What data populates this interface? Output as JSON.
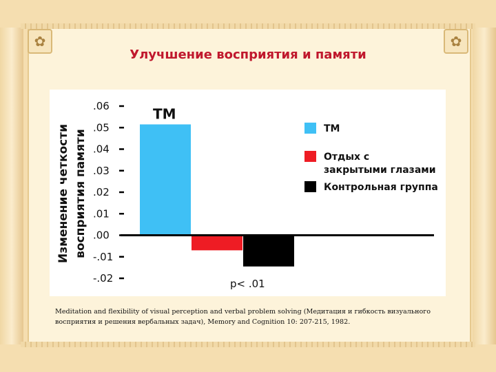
{
  "slide": {
    "title": "Улучшение восприятия и памяти",
    "citation": "Meditation and flexibility of visual perception and verbal problem solving (Медитация и гибкость визуального восприятия и решения вербальных задач), Memory and Cognition 10: 207-215, 1982."
  },
  "colors": {
    "title": "#c0182d",
    "tm": "#3fc0f5",
    "rest": "#ee1c24",
    "control": "#000000"
  },
  "chart_data": {
    "type": "bar",
    "ylabel": [
      "Изменение четкости",
      "восприятия памяти"
    ],
    "ylim": [
      -0.02,
      0.06
    ],
    "yticks": [
      0.06,
      0.05,
      0.04,
      0.03,
      0.02,
      0.01,
      0.0,
      -0.01,
      -0.02
    ],
    "ytick_labels": [
      ".06",
      ".05",
      ".04",
      ".03",
      ".02",
      ".01",
      ".00",
      "-.01",
      "-.02"
    ],
    "series": [
      {
        "name": "ТМ",
        "value": 0.0515,
        "color": "#3fc0f5"
      },
      {
        "name": "Отдых с закрытыми глазами",
        "legend_lines": [
          "Отдых с",
          "закрытыми глазами"
        ],
        "value": -0.007,
        "color": "#ee1c24"
      },
      {
        "name": "Контрольная группа",
        "value": -0.0145,
        "color": "#000000"
      }
    ],
    "bar_annotation": "ТМ",
    "significance": "p< .01",
    "grid": false,
    "legend_position": "right"
  }
}
